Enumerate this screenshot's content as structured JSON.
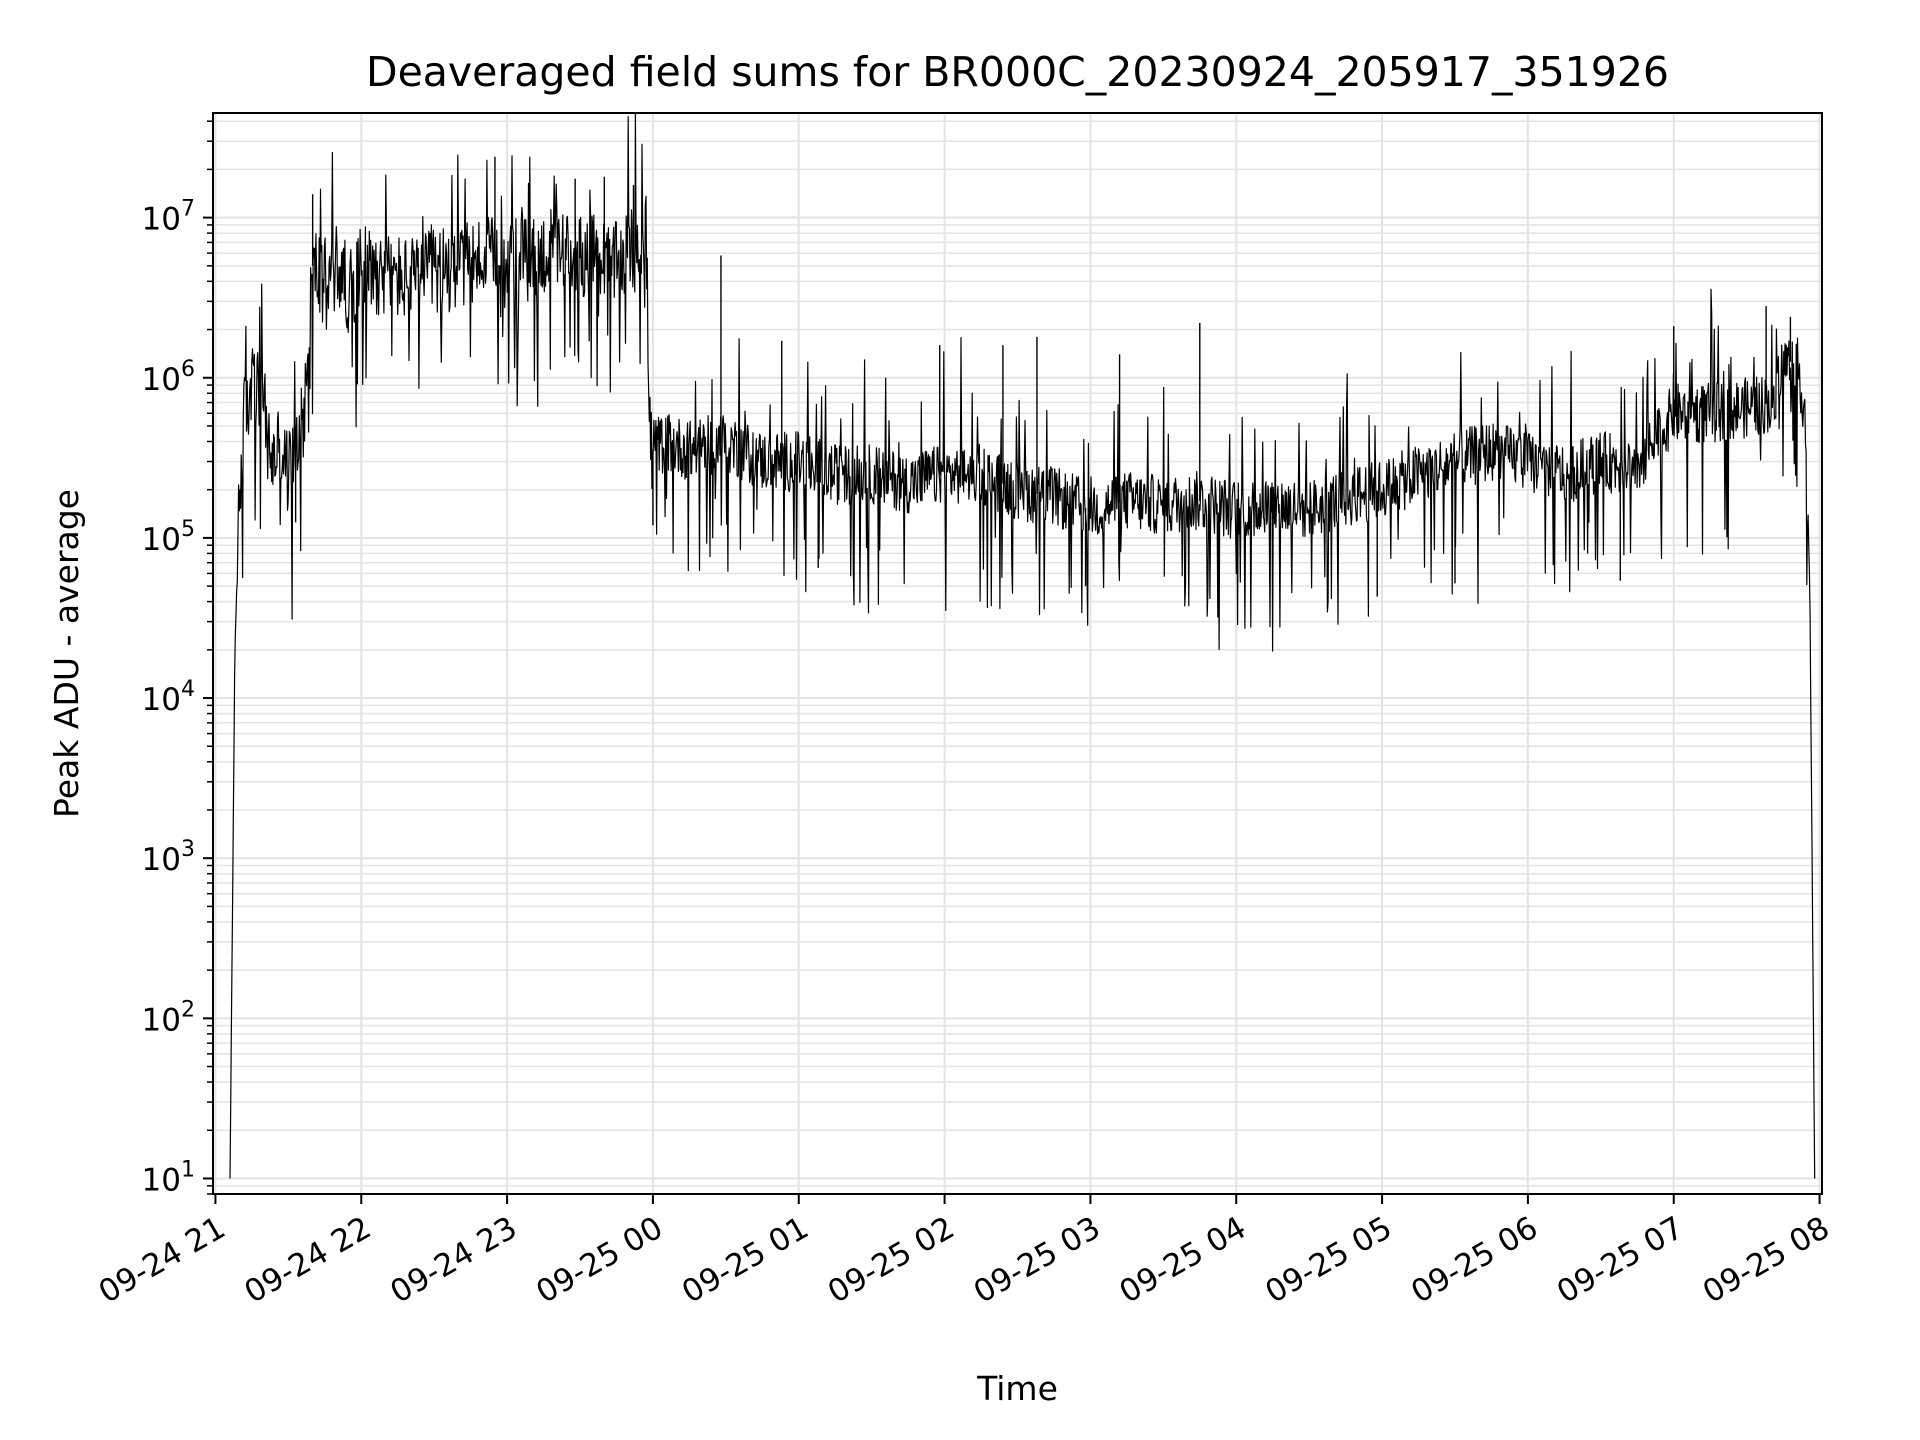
{
  "chart_data": {
    "type": "line",
    "title": "Deaveraged field sums for BR000C_20230924_205917_351926",
    "xlabel": "Time",
    "ylabel": "Peak ADU - average",
    "yscale": "log",
    "ylim": [
      8,
      45000000
    ],
    "xlim": [
      "2023-09-24 20:59",
      "2023-09-25 08:01"
    ],
    "grid": true,
    "legend": "none",
    "colors": {
      "line": "#000000",
      "grid": "#e3e3e3",
      "axes": "#000000"
    },
    "x_tick_labels": [
      "09-24 21",
      "09-24 22",
      "09-24 23",
      "09-25 00",
      "09-25 01",
      "09-25 02",
      "09-25 03",
      "09-25 04",
      "09-25 05",
      "09-25 06",
      "09-25 07",
      "09-25 08"
    ],
    "y_tick_labels": [
      {
        "base": "10",
        "exp": "1"
      },
      {
        "base": "10",
        "exp": "2"
      },
      {
        "base": "10",
        "exp": "3"
      },
      {
        "base": "10",
        "exp": "4"
      },
      {
        "base": "10",
        "exp": "5"
      },
      {
        "base": "10",
        "exp": "6"
      },
      {
        "base": "10",
        "exp": "7"
      }
    ],
    "series": [
      {
        "x": [
          "2023-09-24 21:06",
          "2023-09-24 21:08",
          "2023-09-24 21:10",
          "2023-09-24 21:12",
          "2023-09-24 21:15",
          "2023-09-24 21:18",
          "2023-09-24 21:21",
          "2023-09-24 21:24",
          "2023-09-24 21:27",
          "2023-09-24 21:30",
          "2023-09-24 21:33",
          "2023-09-24 21:36",
          "2023-09-24 21:40",
          "2023-09-24 21:45",
          "2023-09-24 21:50",
          "2023-09-24 21:55",
          "2023-09-24 22:00",
          "2023-09-24 22:10",
          "2023-09-24 22:20",
          "2023-09-24 22:30",
          "2023-09-24 22:40",
          "2023-09-24 22:50",
          "2023-09-24 23:00",
          "2023-09-24 23:15",
          "2023-09-24 23:30",
          "2023-09-24 23:45",
          "2023-09-24 23:55",
          "2023-09-24 23:57",
          "2023-09-24 23:59",
          "2023-09-25 00:05",
          "2023-09-25 00:15",
          "2023-09-25 00:30",
          "2023-09-25 00:45",
          "2023-09-25 01:00",
          "2023-09-25 01:15",
          "2023-09-25 01:30",
          "2023-09-25 01:45",
          "2023-09-25 02:00",
          "2023-09-25 02:15",
          "2023-09-25 02:30",
          "2023-09-25 02:45",
          "2023-09-25 03:00",
          "2023-09-25 03:15",
          "2023-09-25 03:30",
          "2023-09-25 03:45",
          "2023-09-25 04:00",
          "2023-09-25 04:15",
          "2023-09-25 04:30",
          "2023-09-25 04:45",
          "2023-09-25 05:00",
          "2023-09-25 05:15",
          "2023-09-25 05:30",
          "2023-09-25 05:45",
          "2023-09-25 06:00",
          "2023-09-25 06:15",
          "2023-09-25 06:30",
          "2023-09-25 06:45",
          "2023-09-25 07:00",
          "2023-09-25 07:15",
          "2023-09-25 07:30",
          "2023-09-25 07:40",
          "2023-09-25 07:45",
          "2023-09-25 07:50",
          "2023-09-25 07:52",
          "2023-09-25 07:54",
          "2023-09-25 07:56",
          "2023-09-25 07:58"
        ],
        "y": [
          10,
          20000,
          200000,
          600000,
          900000,
          850000,
          400000,
          300000,
          350000,
          250000,
          400000,
          500000,
          5000000,
          4000000,
          5000000,
          3500000,
          5000000,
          4500000,
          4000000,
          4500000,
          5000000,
          5500000,
          5000000,
          6000000,
          6000000,
          5000000,
          7000000,
          10000000,
          350000,
          400000,
          350000,
          400000,
          300000,
          300000,
          250000,
          250000,
          220000,
          250000,
          250000,
          200000,
          180000,
          150000,
          170000,
          160000,
          170000,
          150000,
          160000,
          150000,
          180000,
          200000,
          250000,
          300000,
          350000,
          300000,
          250000,
          300000,
          280000,
          600000,
          600000,
          650000,
          700000,
          1200000,
          1300000,
          1000000,
          600000,
          50000,
          10
        ]
      }
    ],
    "spikes_max": [
      {
        "x": "2023-09-24 21:40",
        "y": 14000000
      },
      {
        "x": "2023-09-24 22:55",
        "y": 24000000
      },
      {
        "x": "2023-09-24 23:28",
        "y": 17500000
      },
      {
        "x": "2023-09-24 23:40",
        "y": 18000000
      },
      {
        "x": "2023-09-24 23:52",
        "y": 16000000
      },
      {
        "x": "2023-09-25 00:28",
        "y": 5800000
      },
      {
        "x": "2023-09-25 00:53",
        "y": 1700000
      },
      {
        "x": "2023-09-25 01:58",
        "y": 1600000
      },
      {
        "x": "2023-09-25 02:24",
        "y": 1600000
      },
      {
        "x": "2023-09-25 02:38",
        "y": 1800000
      },
      {
        "x": "2023-09-25 03:12",
        "y": 1400000
      },
      {
        "x": "2023-09-25 03:45",
        "y": 2200000
      },
      {
        "x": "2023-09-25 07:00",
        "y": 2100000
      },
      {
        "x": "2023-09-25 07:38",
        "y": 2800000
      },
      {
        "x": "2023-09-25 07:48",
        "y": 2400000
      }
    ],
    "spikes_min": [
      {
        "x": "2023-09-24 21:33",
        "y": 125000
      },
      {
        "x": "2023-09-25 00:00",
        "y": 120000
      },
      {
        "x": "2023-09-25 01:08",
        "y": 65000
      },
      {
        "x": "2023-09-25 02:58",
        "y": 50000
      },
      {
        "x": "2023-09-25 04:58",
        "y": 43000
      },
      {
        "x": "2023-09-25 05:30",
        "y": 52000
      },
      {
        "x": "2023-09-25 06:38",
        "y": 54000
      }
    ]
  }
}
